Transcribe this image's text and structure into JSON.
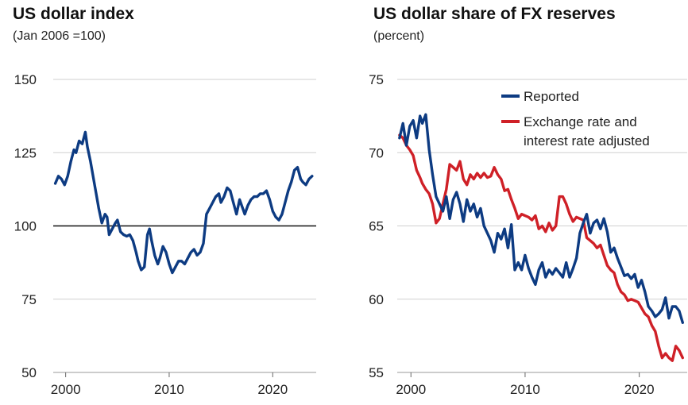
{
  "chart_data": [
    {
      "type": "line",
      "title": "US dollar index",
      "subtitle": "(Jan 2006 =100)",
      "xlim": [
        1998.8,
        2024.2
      ],
      "ylim": [
        50,
        150
      ],
      "x_ticks": [
        2000,
        2010,
        2020
      ],
      "x_tick_labels": [
        "2000",
        "2010",
        "2020"
      ],
      "y_ticks": [
        50,
        75,
        100,
        125,
        150
      ],
      "y_tick_labels": [
        "50",
        "75",
        "100",
        "125",
        "150"
      ],
      "grid": true,
      "reference_line": 100,
      "series": [
        {
          "color": "#0d3b82",
          "x": [
            1999.0,
            1999.3,
            1999.6,
            1999.9,
            2000.2,
            2000.5,
            2000.8,
            2001.0,
            2001.3,
            2001.6,
            2001.9,
            2002.1,
            2002.4,
            2002.7,
            2003.0,
            2003.2,
            2003.5,
            2003.8,
            2004.0,
            2004.2,
            2004.5,
            2004.8,
            2005.0,
            2005.3,
            2005.6,
            2005.9,
            2006.2,
            2006.5,
            2006.8,
            2007.0,
            2007.3,
            2007.6,
            2007.9,
            2008.1,
            2008.3,
            2008.6,
            2008.9,
            2009.1,
            2009.4,
            2009.7,
            2010.0,
            2010.3,
            2010.6,
            2010.9,
            2011.2,
            2011.5,
            2011.8,
            2012.1,
            2012.4,
            2012.7,
            2013.0,
            2013.3,
            2013.6,
            2013.9,
            2014.2,
            2014.5,
            2014.8,
            2015.0,
            2015.3,
            2015.6,
            2015.9,
            2016.2,
            2016.5,
            2016.8,
            2017.0,
            2017.3,
            2017.6,
            2017.9,
            2018.2,
            2018.5,
            2018.8,
            2019.1,
            2019.4,
            2019.7,
            2020.0,
            2020.3,
            2020.6,
            2020.9,
            2021.2,
            2021.5,
            2021.8,
            2022.1,
            2022.4,
            2022.7,
            2022.9,
            2023.2,
            2023.5,
            2023.8
          ],
          "y": [
            114.5,
            117,
            116,
            114,
            117,
            122,
            126,
            125,
            129,
            128,
            132,
            127,
            122,
            116,
            110,
            106,
            101,
            104,
            103,
            97,
            99,
            101,
            102,
            98,
            97,
            96.5,
            97,
            95,
            91,
            88,
            85,
            86,
            97,
            99,
            95,
            90,
            87,
            89,
            93,
            91,
            87,
            84,
            86,
            88,
            88,
            87,
            89,
            91,
            92,
            90,
            91,
            94,
            104,
            106,
            108,
            110,
            111,
            108,
            110,
            113,
            112,
            108,
            104,
            109,
            107,
            104,
            107,
            109,
            110,
            110,
            111,
            111,
            112,
            109,
            105,
            103,
            102,
            104,
            108,
            112,
            115,
            119,
            120,
            116,
            115,
            114,
            116,
            117
          ]
        }
      ]
    },
    {
      "type": "line",
      "title": "US dollar share of FX reserves",
      "subtitle": "(percent)",
      "xlim": [
        1998.8,
        2024.2
      ],
      "ylim": [
        55,
        75
      ],
      "x_ticks": [
        2000,
        2010,
        2020
      ],
      "x_tick_labels": [
        "2000",
        "2010",
        "2020"
      ],
      "y_ticks": [
        55,
        60,
        65,
        70,
        75
      ],
      "y_tick_labels": [
        "55",
        "60",
        "65",
        "70",
        "75"
      ],
      "grid": true,
      "legend_position": "top-right",
      "series": [
        {
          "name": "Reported",
          "color": "#0d3b82",
          "x": [
            1999.0,
            1999.3,
            1999.6,
            1999.9,
            2000.2,
            2000.5,
            2000.8,
            2001.0,
            2001.3,
            2001.6,
            2001.9,
            2002.2,
            2002.5,
            2002.8,
            2003.1,
            2003.4,
            2003.7,
            2004.0,
            2004.3,
            2004.6,
            2004.9,
            2005.2,
            2005.5,
            2005.8,
            2006.1,
            2006.4,
            2006.7,
            2007.0,
            2007.3,
            2007.6,
            2007.9,
            2008.2,
            2008.5,
            2008.8,
            2009.1,
            2009.4,
            2009.7,
            2010.0,
            2010.3,
            2010.6,
            2010.9,
            2011.2,
            2011.5,
            2011.8,
            2012.1,
            2012.4,
            2012.7,
            2013.0,
            2013.3,
            2013.6,
            2013.9,
            2014.2,
            2014.5,
            2014.8,
            2015.1,
            2015.4,
            2015.7,
            2016.0,
            2016.3,
            2016.6,
            2016.9,
            2017.2,
            2017.5,
            2017.8,
            2018.1,
            2018.4,
            2018.7,
            2019.0,
            2019.3,
            2019.6,
            2019.9,
            2020.2,
            2020.5,
            2020.8,
            2021.1,
            2021.4,
            2021.7,
            2022.0,
            2022.3,
            2022.6,
            2022.9,
            2023.2,
            2023.5,
            2023.8
          ],
          "y": [
            71.0,
            72.0,
            70.5,
            71.8,
            72.2,
            71.0,
            72.5,
            72.0,
            72.6,
            70.2,
            68.5,
            67.0,
            66.5,
            66.0,
            67.0,
            65.5,
            66.8,
            67.3,
            66.5,
            65.3,
            66.8,
            66.0,
            66.5,
            65.6,
            66.2,
            65.0,
            64.5,
            64.0,
            63.2,
            64.5,
            64.1,
            64.8,
            63.5,
            65.1,
            62.0,
            62.5,
            62.0,
            63.0,
            62.1,
            61.5,
            61.0,
            62.0,
            62.5,
            61.5,
            62.0,
            61.7,
            62.1,
            61.8,
            61.5,
            62.5,
            61.5,
            62.1,
            62.8,
            64.5,
            65.2,
            65.8,
            64.5,
            65.2,
            65.4,
            64.8,
            65.5,
            64.6,
            63.2,
            63.5,
            62.8,
            62.2,
            61.6,
            61.7,
            61.4,
            61.7,
            60.8,
            61.3,
            60.5,
            59.5,
            59.2,
            58.8,
            59.0,
            59.3,
            60.1,
            58.7,
            59.5,
            59.5,
            59.2,
            58.4
          ]
        },
        {
          "name": "Exchange rate and interest rate adjusted",
          "color": "#cf2027",
          "x": [
            1999.0,
            1999.3,
            1999.6,
            1999.9,
            2000.2,
            2000.5,
            2000.8,
            2001.0,
            2001.3,
            2001.6,
            2001.9,
            2002.2,
            2002.5,
            2002.8,
            2003.1,
            2003.4,
            2003.7,
            2004.0,
            2004.3,
            2004.6,
            2004.9,
            2005.2,
            2005.5,
            2005.8,
            2006.1,
            2006.4,
            2006.7,
            2007.0,
            2007.3,
            2007.6,
            2007.9,
            2008.2,
            2008.5,
            2008.8,
            2009.1,
            2009.4,
            2009.7,
            2010.0,
            2010.3,
            2010.6,
            2010.9,
            2011.2,
            2011.5,
            2011.8,
            2012.1,
            2012.4,
            2012.7,
            2013.0,
            2013.3,
            2013.6,
            2013.9,
            2014.2,
            2014.5,
            2014.8,
            2015.1,
            2015.4,
            2015.7,
            2016.0,
            2016.3,
            2016.6,
            2016.9,
            2017.2,
            2017.5,
            2017.8,
            2018.1,
            2018.4,
            2018.7,
            2019.0,
            2019.3,
            2019.6,
            2019.9,
            2020.2,
            2020.5,
            2020.8,
            2021.1,
            2021.4,
            2021.7,
            2022.0,
            2022.3,
            2022.6,
            2022.9,
            2023.2,
            2023.5,
            2023.8
          ],
          "y": [
            71.2,
            71.0,
            70.5,
            70.2,
            69.8,
            68.8,
            68.3,
            67.9,
            67.5,
            67.2,
            66.5,
            65.2,
            65.5,
            66.5,
            67.5,
            69.2,
            69.0,
            68.8,
            69.4,
            68.2,
            67.8,
            68.5,
            68.2,
            68.6,
            68.3,
            68.6,
            68.3,
            68.4,
            69.0,
            68.5,
            68.2,
            67.4,
            67.5,
            66.8,
            66.2,
            65.5,
            65.8,
            65.7,
            65.6,
            65.4,
            65.7,
            64.8,
            65.0,
            64.6,
            65.2,
            64.7,
            65.0,
            67.0,
            67.0,
            66.5,
            65.8,
            65.3,
            65.6,
            65.5,
            65.4,
            64.2,
            64.0,
            63.8,
            63.5,
            63.7,
            63.0,
            62.3,
            62.0,
            61.8,
            61.0,
            60.5,
            60.3,
            59.9,
            60.0,
            59.9,
            59.8,
            59.4,
            59.0,
            58.8,
            58.2,
            57.8,
            56.8,
            56.0,
            56.3,
            56.0,
            55.8,
            56.8,
            56.5,
            56.0
          ]
        }
      ]
    }
  ]
}
